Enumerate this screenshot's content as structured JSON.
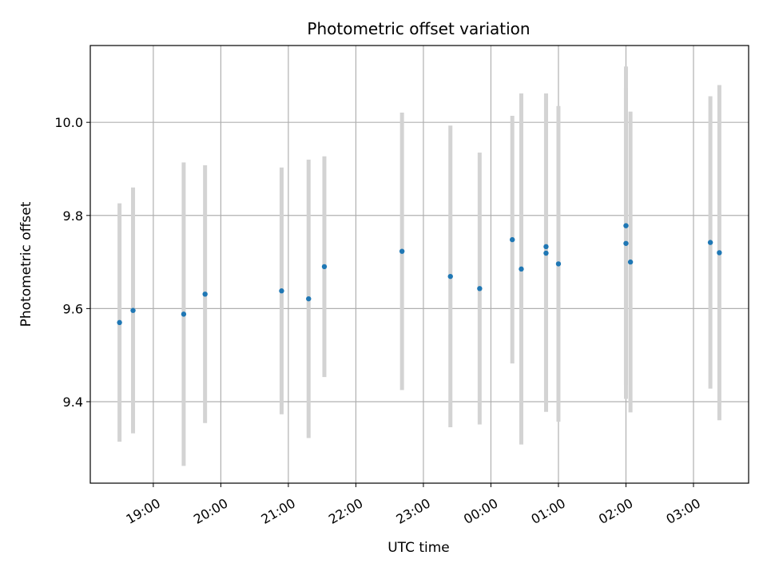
{
  "chart_data": {
    "type": "scatter",
    "title": "Photometric offset variation",
    "xlabel": "UTC time",
    "ylabel": "Photometric offset",
    "x_tick_labels": [
      "19:00",
      "20:00",
      "21:00",
      "22:00",
      "23:00",
      "00:00",
      "01:00",
      "02:00",
      "03:00"
    ],
    "x_tick_hours": [
      19,
      20,
      21,
      22,
      23,
      24,
      25,
      26,
      27
    ],
    "y_ticks": [
      9.4,
      9.6,
      9.8,
      10.0
    ],
    "y_tick_labels": [
      "9.4",
      "9.6",
      "9.8",
      "10.0"
    ],
    "xlim": [
      "18:04",
      "27:49"
    ],
    "ylim": [
      9.225,
      10.165
    ],
    "grid": true,
    "marker_color": "#1f77b4",
    "errorbar_color": "#d3d3d3",
    "points": [
      {
        "x": "18:30",
        "y": 9.57,
        "err": 0.256
      },
      {
        "x": "18:42",
        "y": 9.596,
        "err": 0.264
      },
      {
        "x": "19:27",
        "y": 9.588,
        "err": 0.326
      },
      {
        "x": "19:46",
        "y": 9.631,
        "err": 0.277
      },
      {
        "x": "20:54",
        "y": 9.638,
        "err": 0.265
      },
      {
        "x": "21:18",
        "y": 9.621,
        "err": 0.299
      },
      {
        "x": "21:32",
        "y": 9.69,
        "err": 0.237
      },
      {
        "x": "22:41",
        "y": 9.723,
        "err": 0.298
      },
      {
        "x": "23:24",
        "y": 9.669,
        "err": 0.324
      },
      {
        "x": "23:50",
        "y": 9.643,
        "err": 0.292
      },
      {
        "x": "00:19",
        "y": 9.748,
        "err": 0.266
      },
      {
        "x": "00:27",
        "y": 9.685,
        "err": 0.377
      },
      {
        "x": "00:49",
        "y": 9.733,
        "err": 0.329
      },
      {
        "x": "00:49",
        "y": 9.719,
        "err": 0.341
      },
      {
        "x": "01:00",
        "y": 9.696,
        "err": 0.339
      },
      {
        "x": "02:00",
        "y": 9.778,
        "err": 0.342
      },
      {
        "x": "02:00",
        "y": 9.74,
        "err": 0.334
      },
      {
        "x": "02:04",
        "y": 9.7,
        "err": 0.323
      },
      {
        "x": "03:15",
        "y": 9.742,
        "err": 0.314
      },
      {
        "x": "03:23",
        "y": 9.72,
        "err": 0.36
      }
    ]
  }
}
